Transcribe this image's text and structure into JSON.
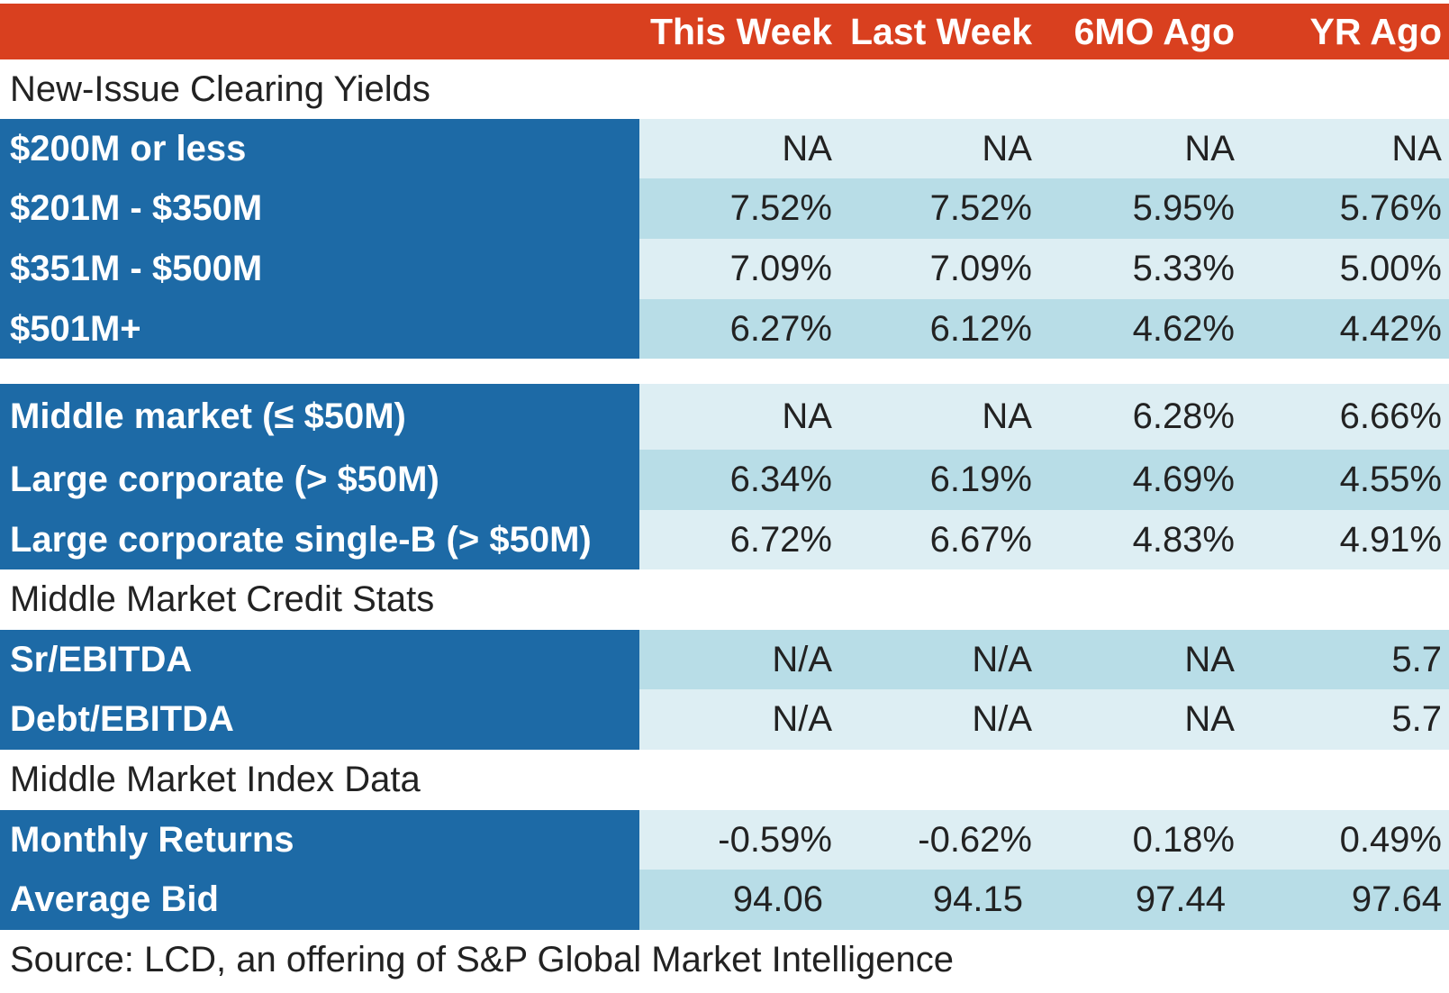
{
  "header": {
    "columns": [
      "This Week",
      "Last Week",
      "6MO Ago",
      "YR Ago"
    ]
  },
  "sections": {
    "new_issue": "New-Issue Clearing Yields",
    "credit_stats": "Middle Market Credit Stats",
    "index_data": "Middle Market Index Data"
  },
  "rows": {
    "r200": {
      "label": "$200M or less",
      "values": [
        "NA",
        "NA",
        "NA",
        "NA"
      ]
    },
    "r201": {
      "label": "$201M - $350M",
      "values": [
        "7.52%",
        "7.52%",
        "5.95%",
        "5.76%"
      ]
    },
    "r351": {
      "label": "$351M - $500M",
      "values": [
        "7.09%",
        "7.09%",
        "5.33%",
        "5.00%"
      ]
    },
    "r501": {
      "label": "$501M+",
      "values": [
        "6.27%",
        "6.12%",
        "4.62%",
        "4.42%"
      ]
    },
    "mid": {
      "label": "Middle market (≤ $50M)",
      "values": [
        "NA",
        "NA",
        "6.28%",
        "6.66%"
      ]
    },
    "large": {
      "label": "Large corporate (> $50M)",
      "values": [
        "6.34%",
        "6.19%",
        "4.69%",
        "4.55%"
      ]
    },
    "largeb": {
      "label": "Large corporate single-B (> $50M)",
      "values": [
        "6.72%",
        "6.67%",
        "4.83%",
        "4.91%"
      ]
    },
    "sr": {
      "label": "Sr/EBITDA",
      "values": [
        "N/A",
        "N/A",
        "NA",
        "5.7"
      ]
    },
    "debt": {
      "label": "Debt/EBITDA",
      "values": [
        "N/A",
        "N/A",
        "NA",
        "5.7"
      ]
    },
    "monthly": {
      "label": "Monthly Returns",
      "values": [
        "-0.59%",
        "-0.62%",
        "0.18%",
        "0.49%"
      ]
    },
    "avgbid": {
      "label": "Average Bid",
      "values": [
        "94.06",
        "94.15",
        "97.44",
        "97.64"
      ]
    }
  },
  "source": "Source: LCD, an offering of S&P Global Market Intelligence",
  "colors": {
    "header_bg": "#d9401f",
    "label_bg": "#1d6aa6",
    "value_light": "#ddeef3",
    "value_dark": "#b8dde7"
  }
}
